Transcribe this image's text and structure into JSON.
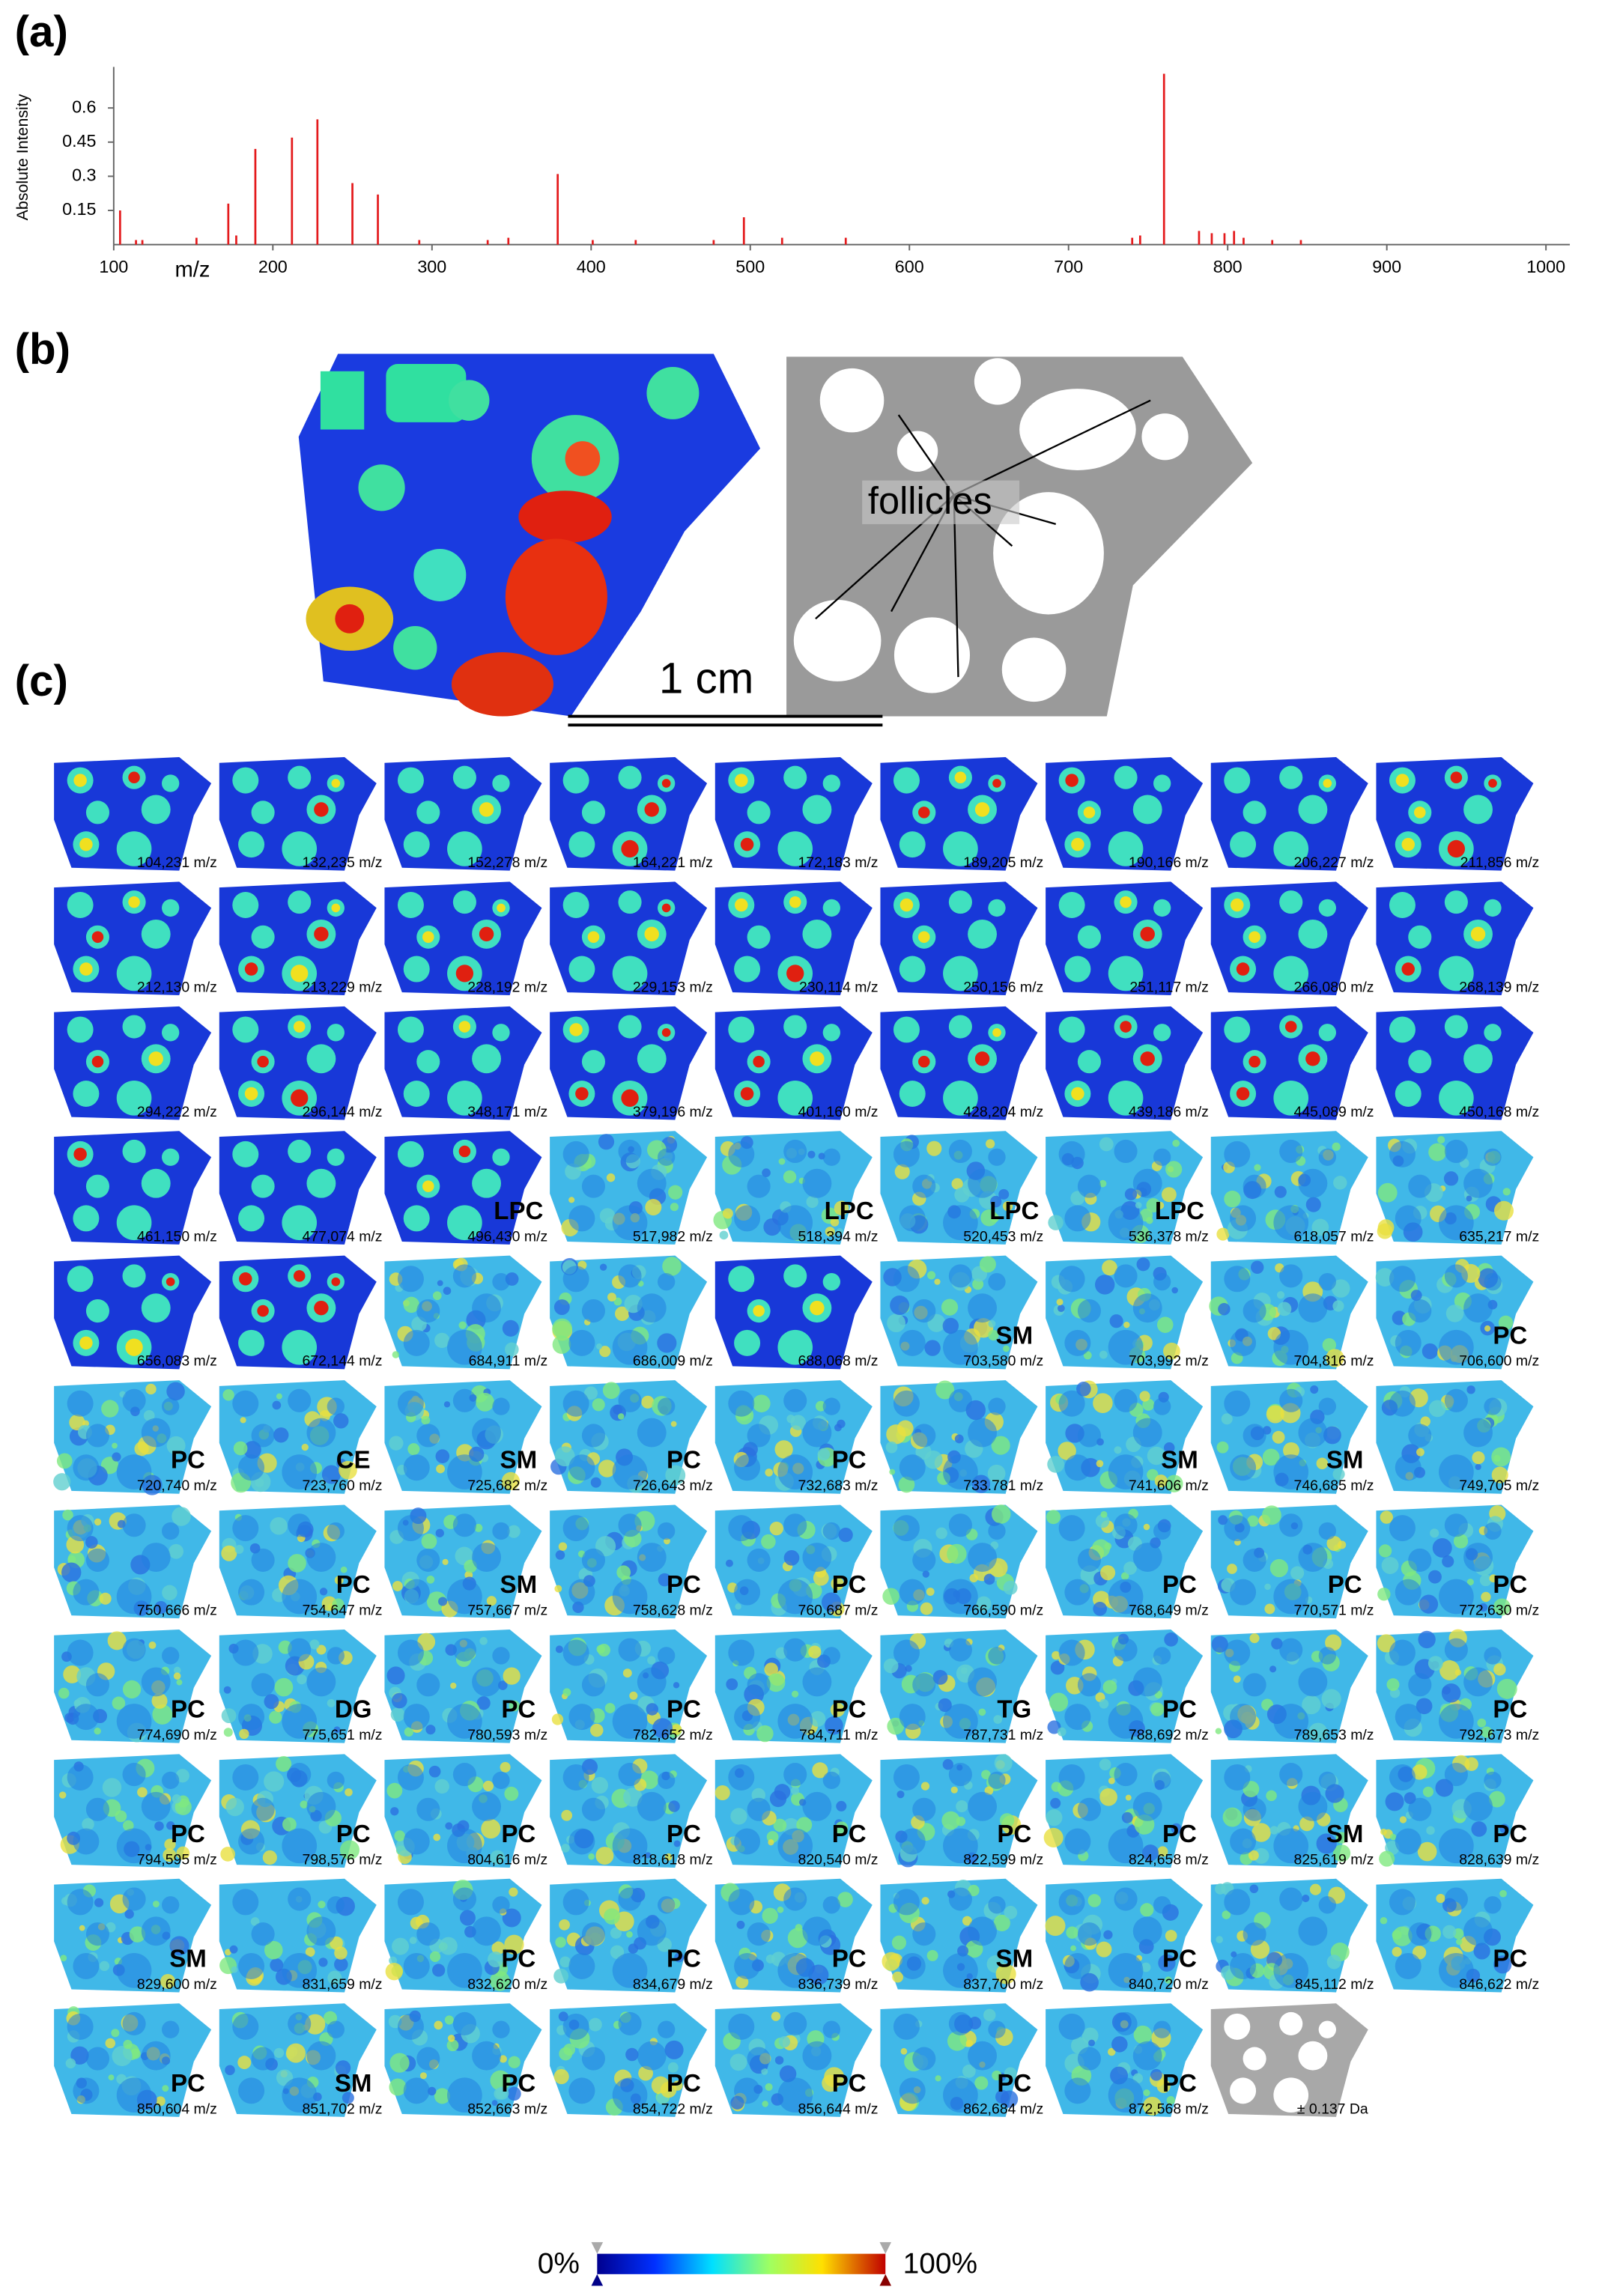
{
  "panel_labels": [
    "(a)",
    "(b)",
    "(c)"
  ],
  "chart_data": {
    "type": "stem",
    "y_label": "Absolute Intensity",
    "x_label": "m/z",
    "color": "#e41a1c",
    "x": [
      104,
      114,
      118,
      152,
      172,
      177,
      189,
      212,
      228,
      250,
      266,
      292,
      335,
      348,
      379,
      401,
      428,
      477,
      496,
      520,
      560,
      740,
      745,
      760,
      782,
      790,
      798,
      804,
      810,
      828,
      846
    ],
    "values": [
      0.15,
      0.02,
      0.02,
      0.03,
      0.18,
      0.04,
      0.42,
      0.47,
      0.55,
      0.27,
      0.22,
      0.02,
      0.02,
      0.03,
      0.31,
      0.02,
      0.02,
      0.02,
      0.12,
      0.03,
      0.03,
      0.03,
      0.04,
      0.75,
      0.06,
      0.05,
      0.05,
      0.06,
      0.03,
      0.02,
      0.02
    ],
    "xlim": [
      100,
      1015
    ],
    "ylim": [
      0,
      0.78
    ],
    "xticks": [
      100,
      200,
      300,
      400,
      500,
      600,
      700,
      800,
      900,
      1000
    ],
    "yticks": [
      0.15,
      0.3,
      0.45,
      0.6
    ]
  },
  "panel_b": {
    "annotation": "follicles",
    "scale_bar": "1 cm"
  },
  "panel_c": {
    "tiles": [
      [
        "104,231 m/z"
      ],
      [
        "132,235 m/z"
      ],
      [
        "152,278 m/z"
      ],
      [
        "164,221 m/z"
      ],
      [
        "172,183 m/z"
      ],
      [
        "189,205 m/z"
      ],
      [
        "190,166 m/z"
      ],
      [
        "206,227 m/z"
      ],
      [
        "211,856 m/z"
      ],
      [
        "212,130 m/z"
      ],
      [
        "213,229 m/z"
      ],
      [
        "228,192 m/z"
      ],
      [
        "229,153 m/z"
      ],
      [
        "230,114 m/z"
      ],
      [
        "250,156 m/z"
      ],
      [
        "251,117 m/z"
      ],
      [
        "266,080 m/z"
      ],
      [
        "268,139 m/z"
      ],
      [
        "294,222 m/z"
      ],
      [
        "296,144 m/z"
      ],
      [
        "348,171 m/z"
      ],
      [
        "379,196 m/z"
      ],
      [
        "401,160 m/z"
      ],
      [
        "428,204 m/z"
      ],
      [
        "439,186 m/z"
      ],
      [
        "445,089 m/z"
      ],
      [
        "450,168 m/z"
      ],
      [
        "461,150 m/z"
      ],
      [
        "477,074 m/z"
      ],
      [
        "496,430 m/z",
        "LPC"
      ],
      [
        "517,982 m/z"
      ],
      [
        "518,394 m/z",
        "LPC"
      ],
      [
        "520,453 m/z",
        "LPC"
      ],
      [
        "536,378 m/z",
        "LPC"
      ],
      [
        "618,057 m/z"
      ],
      [
        "635,217 m/z"
      ],
      [
        "656,083 m/z"
      ],
      [
        "672,144 m/z"
      ],
      [
        "684,911 m/z"
      ],
      [
        "686,009 m/z"
      ],
      [
        "688,068 m/z"
      ],
      [
        "703,580 m/z",
        "SM"
      ],
      [
        "703,992 m/z"
      ],
      [
        "704,816 m/z"
      ],
      [
        "706,600 m/z",
        "PC"
      ],
      [
        "720,740 m/z",
        "PC"
      ],
      [
        "723,760 m/z",
        "CE"
      ],
      [
        "725,682 m/z",
        "SM"
      ],
      [
        "726,643 m/z",
        "PC"
      ],
      [
        "732,683 m/z",
        "PC"
      ],
      [
        "733.781 m/z"
      ],
      [
        "741,606 m/z",
        "SM"
      ],
      [
        "746,685 m/z",
        "SM"
      ],
      [
        "749,705 m/z"
      ],
      [
        "750,666 m/z"
      ],
      [
        "754,647 m/z",
        "PC"
      ],
      [
        "757,667 m/z",
        "SM"
      ],
      [
        "758,628 m/z",
        "PC"
      ],
      [
        "760,687 m/z",
        "PC"
      ],
      [
        "766,590 m/z"
      ],
      [
        "768,649 m/z",
        "PC"
      ],
      [
        "770,571 m/z",
        "PC"
      ],
      [
        "772,630 m/z",
        "PC"
      ],
      [
        "774,690 m/z",
        "PC"
      ],
      [
        "775,651 m/z",
        "DG"
      ],
      [
        "780,593 m/z",
        "PC"
      ],
      [
        "782,652 m/z",
        "PC"
      ],
      [
        "784,711 m/z",
        "PC"
      ],
      [
        "787,731 m/z",
        "TG"
      ],
      [
        "788,692 m/z",
        "PC"
      ],
      [
        "789,653 m/z"
      ],
      [
        "792,673 m/z",
        "PC"
      ],
      [
        "794,595 m/z",
        "PC"
      ],
      [
        "798,576 m/z",
        "PC"
      ],
      [
        "804,616 m/z",
        "PC"
      ],
      [
        "818,618 m/z",
        "PC"
      ],
      [
        "820,540 m/z",
        "PC"
      ],
      [
        "822,599 m/z",
        "PC"
      ],
      [
        "824,658 m/z",
        "PC"
      ],
      [
        "825,619 m/z",
        "SM"
      ],
      [
        "828,639 m/z",
        "PC"
      ],
      [
        "829,600 m/z",
        "SM"
      ],
      [
        "831,659 m/z"
      ],
      [
        "832,620 m/z",
        "PC"
      ],
      [
        "834,679 m/z",
        "PC"
      ],
      [
        "836,739 m/z",
        "PC"
      ],
      [
        "837,700 m/z",
        "SM"
      ],
      [
        "840,720 m/z",
        "PC"
      ],
      [
        "845,112 m/z"
      ],
      [
        "846,622 m/z",
        "PC"
      ],
      [
        "850,604 m/z",
        "PC"
      ],
      [
        "851,702 m/z",
        "SM"
      ],
      [
        "852,663 m/z",
        "PC"
      ],
      [
        "854,722 m/z",
        "PC"
      ],
      [
        "856,644 m/z",
        "PC"
      ],
      [
        "862,684 m/z",
        "PC"
      ],
      [
        "872,568 m/z",
        "PC"
      ]
    ],
    "reference_tile": "± 0.137 Da",
    "colorbar": {
      "min": "0%",
      "max": "100%"
    }
  }
}
